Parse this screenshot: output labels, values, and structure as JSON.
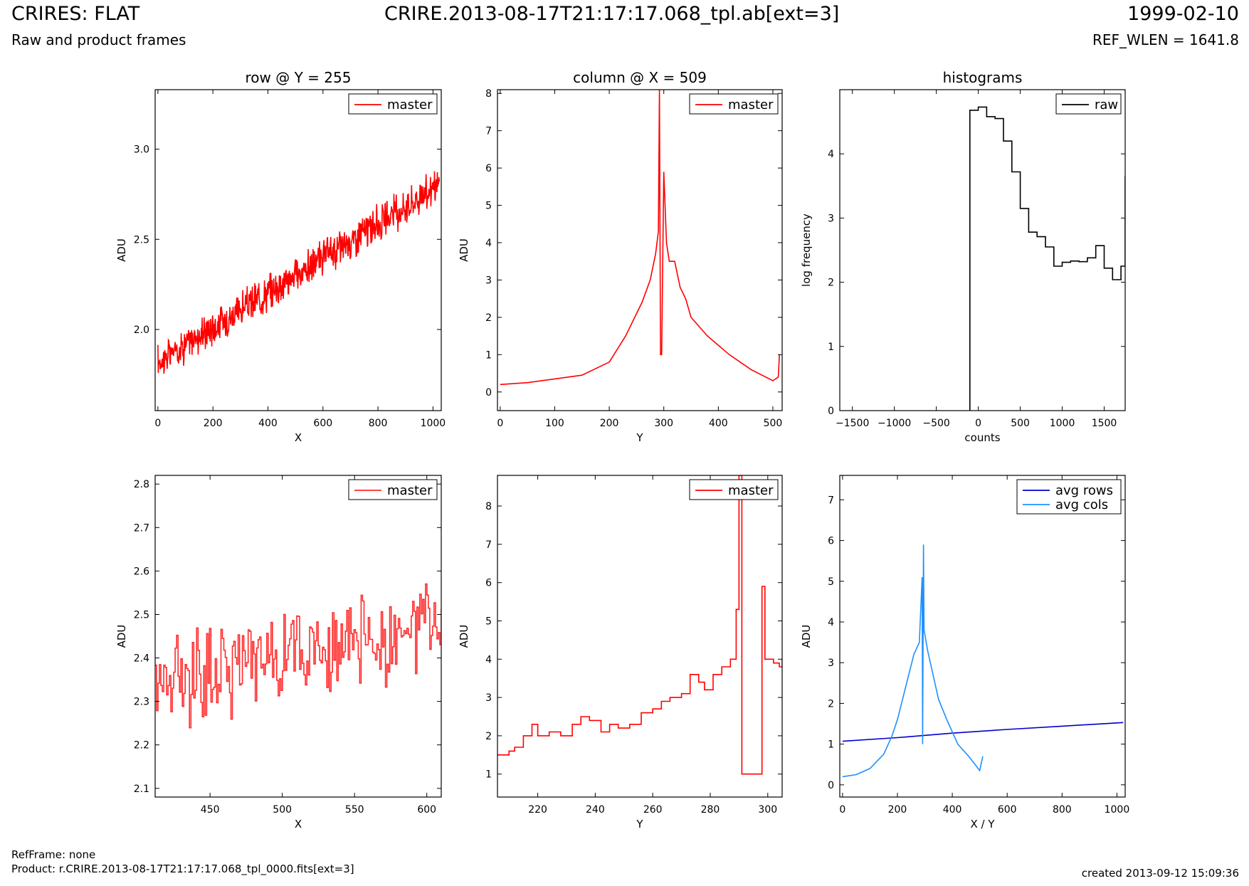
{
  "header": {
    "title": "CRIRES: FLAT",
    "subtitle": "Raw and product frames",
    "filename": "CRIRE.2013-08-17T21:17:17.068_tpl.ab[ext=3]",
    "date": "1999-02-10",
    "ref_wlen": "REF_WLEN = 1641.8"
  },
  "footer": {
    "ref_frame": "RefFrame: none",
    "product": "Product: r.CRIRE.2013-08-17T21:17:17.068_tpl_0000.fits[ext=3]",
    "created": "created 2013-09-12 15:09:36"
  },
  "chart_data": [
    {
      "id": "row-plot",
      "type": "line",
      "title": "row @ Y = 255",
      "xlabel": "X",
      "ylabel": "ADU",
      "xlim": [
        -10,
        1030
      ],
      "ylim": [
        1.55,
        3.33
      ],
      "xticks": [
        0,
        200,
        400,
        600,
        800,
        1000
      ],
      "yticks": [
        2.0,
        2.5,
        3.0
      ],
      "ytick_labels": [
        "2.0",
        "2.5",
        "3.0"
      ],
      "grid": false,
      "legend": "top-right",
      "series": [
        {
          "name": "master",
          "color": "#ff0000",
          "trend": {
            "x": [
              0,
              1023
            ],
            "y": [
              1.82,
              2.8
            ]
          },
          "noise": 0.09
        }
      ]
    },
    {
      "id": "col-plot",
      "type": "line",
      "title": "column @ X = 509",
      "xlabel": "Y",
      "ylabel": "ADU",
      "xlim": [
        -5,
        517
      ],
      "ylim": [
        -0.5,
        8.1
      ],
      "xticks": [
        0,
        100,
        200,
        300,
        400,
        500
      ],
      "yticks": [
        0,
        1,
        2,
        3,
        4,
        5,
        6,
        7,
        8
      ],
      "grid": false,
      "legend": "top-right",
      "series": [
        {
          "name": "master",
          "color": "#ff0000",
          "x": [
            0,
            50,
            100,
            150,
            200,
            230,
            260,
            275,
            285,
            290,
            292,
            294,
            296,
            300,
            305,
            310,
            320,
            330,
            340,
            350,
            380,
            420,
            460,
            500,
            510,
            512
          ],
          "y": [
            0.2,
            0.25,
            0.35,
            0.45,
            0.8,
            1.5,
            2.4,
            3.0,
            3.7,
            4.3,
            8.1,
            1.0,
            1.0,
            5.9,
            4.0,
            3.5,
            3.5,
            2.8,
            2.5,
            2.0,
            1.5,
            1.0,
            0.6,
            0.3,
            0.4,
            1.0
          ]
        }
      ]
    },
    {
      "id": "hist-plot",
      "type": "line",
      "title": "histograms",
      "xlabel": "counts",
      "ylabel": "log frequency",
      "xlim": [
        -1650,
        1750
      ],
      "ylim": [
        0,
        5
      ],
      "xticks": [
        -1500,
        -1000,
        -500,
        0,
        500,
        1000,
        1500
      ],
      "xtick_labels": [
        "−1500",
        "−1000",
        "−500",
        "0",
        "500",
        "1000",
        "1500"
      ],
      "yticks": [
        0,
        1,
        2,
        3,
        4
      ],
      "grid": false,
      "legend": "top-right",
      "series": [
        {
          "name": "raw",
          "color": "#000000",
          "step": true,
          "x": [
            -100,
            -100,
            0,
            100,
            200,
            300,
            400,
            500,
            600,
            700,
            800,
            900,
            1000,
            1100,
            1200,
            1300,
            1400,
            1500,
            1600,
            1700,
            1750
          ],
          "y": [
            0,
            4.68,
            4.73,
            4.58,
            4.55,
            4.2,
            3.72,
            3.15,
            2.78,
            2.71,
            2.55,
            2.25,
            2.31,
            2.33,
            2.32,
            2.38,
            2.57,
            2.22,
            2.04,
            2.25,
            3.65
          ]
        }
      ]
    },
    {
      "id": "row-zoom",
      "type": "line",
      "title": "",
      "xlabel": "X",
      "ylabel": "ADU",
      "xlim": [
        412,
        610
      ],
      "ylim": [
        2.08,
        2.82
      ],
      "xticks": [
        450,
        500,
        550,
        600
      ],
      "yticks": [
        2.1,
        2.2,
        2.3,
        2.4,
        2.5,
        2.6,
        2.7,
        2.8
      ],
      "ytick_labels": [
        "2.1",
        "2.2",
        "2.3",
        "2.4",
        "2.5",
        "2.6",
        "2.7",
        "2.8"
      ],
      "grid": false,
      "legend": "top-right",
      "series": [
        {
          "name": "master",
          "color": "#ff2a2a",
          "step": true,
          "trend": {
            "x": [
              412,
              610
            ],
            "y": [
              2.35,
              2.47
            ]
          },
          "noise": 0.1
        }
      ]
    },
    {
      "id": "col-zoom",
      "type": "line",
      "title": "",
      "xlabel": "Y",
      "ylabel": "ADU",
      "xlim": [
        206,
        305
      ],
      "ylim": [
        0.4,
        8.8
      ],
      "xticks": [
        220,
        240,
        260,
        280,
        300
      ],
      "yticks": [
        1,
        2,
        3,
        4,
        5,
        6,
        7,
        8
      ],
      "grid": false,
      "legend": "top-right",
      "series": [
        {
          "name": "master",
          "color": "#ff0000",
          "step": true,
          "x": [
            206,
            210,
            212,
            215,
            218,
            220,
            224,
            228,
            232,
            235,
            238,
            242,
            245,
            248,
            252,
            256,
            260,
            263,
            266,
            270,
            273,
            276,
            278,
            281,
            284,
            287,
            289,
            290,
            291,
            292,
            298,
            299,
            300,
            302,
            304,
            305
          ],
          "y": [
            1.5,
            1.6,
            1.7,
            2.0,
            2.3,
            2.0,
            2.1,
            2.0,
            2.3,
            2.5,
            2.4,
            2.1,
            2.3,
            2.2,
            2.3,
            2.6,
            2.7,
            2.9,
            3.0,
            3.1,
            3.6,
            3.4,
            3.2,
            3.6,
            3.8,
            4.0,
            5.3,
            8.8,
            1.0,
            1.0,
            5.9,
            4.0,
            4.0,
            3.9,
            3.8,
            4.0
          ]
        }
      ]
    },
    {
      "id": "avg-plot",
      "type": "line",
      "title": "",
      "xlabel": "X / Y",
      "ylabel": "ADU",
      "xlim": [
        -10,
        1030
      ],
      "ylim": [
        -0.3,
        7.6
      ],
      "xticks": [
        0,
        200,
        400,
        600,
        800,
        1000
      ],
      "yticks": [
        0,
        1,
        2,
        3,
        4,
        5,
        6,
        7
      ],
      "grid": false,
      "legend": "top-right",
      "series": [
        {
          "name": "avg rows",
          "color": "#0000cc",
          "x": [
            0,
            200,
            400,
            600,
            800,
            1023
          ],
          "y": [
            1.07,
            1.16,
            1.27,
            1.36,
            1.44,
            1.53
          ]
        },
        {
          "name": "avg cols",
          "color": "#1e90ff",
          "x": [
            0,
            50,
            100,
            150,
            180,
            200,
            230,
            260,
            280,
            290,
            292,
            295,
            297,
            300,
            310,
            330,
            350,
            380,
            420,
            460,
            500,
            511
          ],
          "y": [
            0.2,
            0.25,
            0.4,
            0.75,
            1.2,
            1.6,
            2.4,
            3.2,
            3.5,
            5.1,
            1.0,
            5.9,
            3.8,
            3.7,
            3.3,
            2.7,
            2.1,
            1.6,
            1.0,
            0.7,
            0.35,
            0.7
          ]
        }
      ]
    }
  ]
}
